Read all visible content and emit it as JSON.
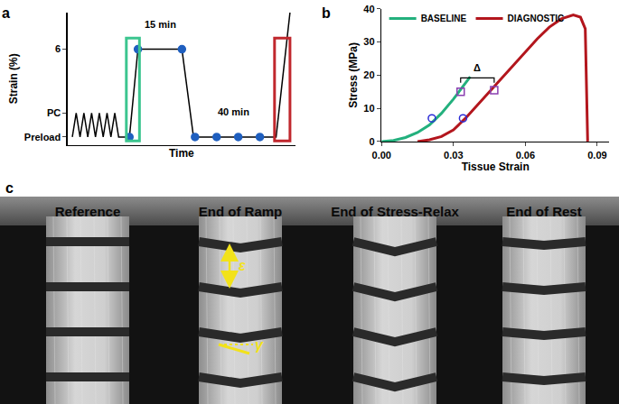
{
  "chart_data": [
    {
      "panel_label": "a",
      "type": "line",
      "x_label": "Time",
      "y_label": "Strain (%)",
      "xlim": [
        0,
        295
      ],
      "ylim": [
        0,
        8.3
      ],
      "yticks": [
        {
          "value": 0.5,
          "label": "Preload"
        },
        {
          "value": 2,
          "label": "PC"
        },
        6
      ],
      "tick_labels": "y",
      "series": [
        {
          "type": "line",
          "color": "#000000",
          "x": [
            6,
            11,
            16,
            21,
            26,
            31,
            36,
            41,
            46,
            51,
            56,
            61,
            66,
            80,
            91,
            148,
            163,
            270,
            288
          ],
          "values": [
            0.5,
            2,
            0.5,
            2,
            0.5,
            2,
            0.5,
            2,
            0.5,
            2,
            0.5,
            2,
            0.5,
            0.5,
            6,
            6,
            0.5,
            0.5,
            8.3
          ]
        },
        {
          "type": "scatter",
          "marker": "circle",
          "color": "#1f5fbf",
          "x": [
            80,
            91,
            148,
            165,
            193,
            221,
            249
          ],
          "values": [
            0.5,
            6,
            6,
            0.5,
            0.5,
            0.5,
            0.5
          ]
        }
      ],
      "highlights": [
        {
          "x": [
            76,
            93
          ],
          "y": [
            0.25,
            6.7
          ],
          "color": "#3cc58f"
        },
        {
          "x": [
            268,
            288
          ],
          "y": [
            0.25,
            6.7
          ],
          "color": "#c0272d"
        }
      ],
      "annotations": [
        {
          "text": "15 min",
          "x": 120,
          "y": 7.1
        },
        {
          "text": "40 min",
          "x": 215,
          "y": 1.6
        }
      ]
    },
    {
      "panel_label": "b",
      "type": "line",
      "x_label": "Tissue Strain",
      "y_label": "Stress (MPa)",
      "xlim": [
        0,
        0.095
      ],
      "ylim": [
        0,
        40
      ],
      "xticks": [
        {
          "value": 0,
          "label": "0.00"
        },
        0.03,
        0.06,
        0.09
      ],
      "yticks": [
        0,
        10,
        20,
        30,
        40
      ],
      "legend": "top left",
      "series": [
        {
          "name": "BASELINE",
          "type": "line",
          "color": "#23b07d",
          "x": [
            0,
            0.005,
            0.01,
            0.015,
            0.02,
            0.025,
            0.03,
            0.035,
            0.037
          ],
          "values": [
            0,
            0.3,
            1.2,
            2.7,
            5,
            8.5,
            12.8,
            17.5,
            19.5
          ]
        },
        {
          "name": "DIAGNOSTIC",
          "type": "line",
          "color": "#b3161d",
          "x": [
            0.015,
            0.02,
            0.025,
            0.03,
            0.035,
            0.04,
            0.045,
            0.05,
            0.055,
            0.06,
            0.065,
            0.07,
            0.075,
            0.08,
            0.083,
            0.085,
            0.086
          ],
          "values": [
            0,
            0.5,
            1.5,
            3.5,
            7,
            11,
            15,
            19,
            23,
            27,
            31,
            34.5,
            37,
            38.2,
            37.5,
            34,
            0
          ]
        },
        {
          "type": "scatter",
          "marker": "circle-open",
          "color": "#2b2bd6",
          "x": [
            0.021,
            0.034
          ],
          "values": [
            7,
            7
          ]
        },
        {
          "type": "scatter",
          "marker": "square-open",
          "color": "#8a3fb0",
          "x": [
            0.033,
            0.047
          ],
          "values": [
            15,
            15.5
          ]
        }
      ],
      "annotations": [
        {
          "text": "Δ",
          "x": 0.04,
          "y": 20
        }
      ]
    }
  ],
  "panel_c": {
    "panel_label": "c",
    "frames": [
      "Reference",
      "End of Ramp",
      "End of Stress-Relax",
      "End of Rest"
    ],
    "annotations": [
      {
        "text": "ε",
        "frame": 1
      },
      {
        "text": "γ",
        "frame": 1
      }
    ]
  }
}
